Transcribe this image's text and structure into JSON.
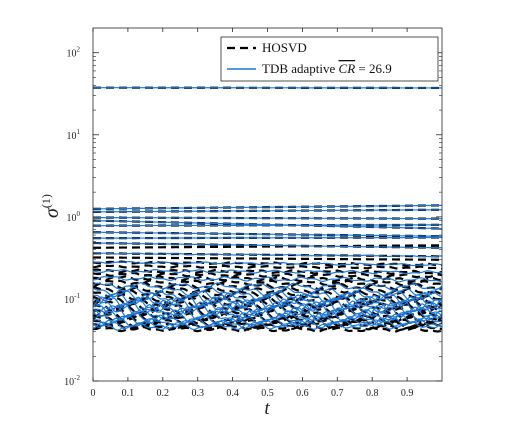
{
  "chart_data": {
    "type": "line",
    "xlabel": "t",
    "ylabel": "σ(1)",
    "ylabel_base": "σ",
    "ylabel_sup": "(1)",
    "xlim": [
      0,
      1
    ],
    "ylim": [
      0.01,
      200
    ],
    "yscale": "log",
    "grid": false,
    "legend_position": "top-right",
    "x_ticks": [
      0,
      0.1,
      0.2,
      0.3,
      0.4,
      0.5,
      0.6,
      0.7,
      0.8,
      0.9
    ],
    "x_tick_labels": [
      "0",
      "0.1",
      "0.2",
      "0.3",
      "0.4",
      "0.5",
      "0.6",
      "0.7",
      "0.8",
      "0.9"
    ],
    "y_ticks": [
      0.01,
      0.1,
      1,
      10,
      100
    ],
    "y_tick_bases": [
      "10",
      "10",
      "10",
      "10",
      "10"
    ],
    "y_tick_exponents": [
      "-2",
      "-1",
      "0",
      "1",
      "2"
    ],
    "legend": [
      {
        "name": "HOSVD",
        "style": "dashed",
        "color": "#000000"
      },
      {
        "name": "TDB adaptive",
        "cr_label": "CR",
        "cr_value": "= 26.9",
        "style": "solid",
        "color": "#1f77d4"
      }
    ],
    "series": [
      {
        "group": "HOSVD",
        "start": 37.5,
        "end": 37.2,
        "osc": 0
      },
      {
        "group": "HOSVD",
        "start": 1.25,
        "end": 1.38,
        "osc": 0
      },
      {
        "group": "HOSVD",
        "start": 1.15,
        "end": 1.22,
        "osc": 0
      },
      {
        "group": "HOSVD",
        "start": 0.98,
        "end": 0.95,
        "osc": 0
      },
      {
        "group": "HOSVD",
        "start": 0.9,
        "end": 0.72,
        "osc": 0
      },
      {
        "group": "HOSVD",
        "start": 0.78,
        "end": 0.8,
        "osc": 0
      },
      {
        "group": "HOSVD",
        "start": 0.65,
        "end": 0.58,
        "osc": 0
      },
      {
        "group": "HOSVD",
        "start": 0.55,
        "end": 0.56,
        "osc": 0
      },
      {
        "group": "HOSVD",
        "start": 0.48,
        "end": 0.42,
        "osc": 0
      },
      {
        "group": "HOSVD",
        "start": 0.42,
        "end": 0.45,
        "osc": 0
      },
      {
        "group": "HOSVD",
        "start": 0.36,
        "end": 0.33,
        "osc": 0
      },
      {
        "group": "HOSVD",
        "start": 0.32,
        "end": 0.3,
        "osc": 0
      },
      {
        "group": "HOSVD",
        "start": 0.28,
        "end": 0.26,
        "osc": 0.02
      },
      {
        "group": "HOSVD",
        "start": 0.25,
        "end": 0.24,
        "osc": 0.02
      },
      {
        "group": "HOSVD",
        "start": 0.22,
        "end": 0.21,
        "osc": 0.03
      },
      {
        "group": "HOSVD",
        "start": 0.2,
        "end": 0.19,
        "osc": 0.03
      },
      {
        "group": "HOSVD",
        "start": 0.18,
        "end": 0.17,
        "osc": 0.04
      },
      {
        "group": "HOSVD",
        "start": 0.16,
        "end": 0.155,
        "osc": 0.04
      },
      {
        "group": "HOSVD",
        "start": 0.145,
        "end": 0.14,
        "osc": 0.05
      },
      {
        "group": "HOSVD",
        "start": 0.13,
        "end": 0.125,
        "osc": 0.05
      },
      {
        "group": "HOSVD",
        "start": 0.118,
        "end": 0.112,
        "osc": 0.06
      },
      {
        "group": "HOSVD",
        "start": 0.106,
        "end": 0.1,
        "osc": 0.06
      },
      {
        "group": "HOSVD",
        "start": 0.096,
        "end": 0.092,
        "osc": 0.07
      },
      {
        "group": "HOSVD",
        "start": 0.088,
        "end": 0.084,
        "osc": 0.07
      },
      {
        "group": "HOSVD",
        "start": 0.08,
        "end": 0.077,
        "osc": 0.08
      },
      {
        "group": "HOSVD",
        "start": 0.073,
        "end": 0.07,
        "osc": 0.08
      },
      {
        "group": "HOSVD",
        "start": 0.067,
        "end": 0.064,
        "osc": 0.08
      },
      {
        "group": "HOSVD",
        "start": 0.062,
        "end": 0.059,
        "osc": 0.08
      },
      {
        "group": "HOSVD",
        "start": 0.057,
        "end": 0.055,
        "osc": 0.07
      },
      {
        "group": "HOSVD",
        "start": 0.053,
        "end": 0.051,
        "osc": 0.07
      },
      {
        "group": "HOSVD",
        "start": 0.049,
        "end": 0.048,
        "osc": 0.06
      },
      {
        "group": "HOSVD",
        "start": 0.046,
        "end": 0.045,
        "osc": 0.05
      },
      {
        "group": "HOSVD",
        "start": 0.043,
        "end": 0.042,
        "osc": 0.04
      },
      {
        "group": "TDB",
        "start": 37.5,
        "end": 37.2,
        "osc": 0
      },
      {
        "group": "TDB",
        "start": 1.25,
        "end": 1.38,
        "osc": 0
      },
      {
        "group": "TDB",
        "start": 1.15,
        "end": 1.22,
        "osc": 0
      },
      {
        "group": "TDB",
        "start": 0.98,
        "end": 0.95,
        "osc": 0
      },
      {
        "group": "TDB",
        "start": 0.9,
        "end": 0.72,
        "osc": 0
      },
      {
        "group": "TDB",
        "start": 0.78,
        "end": 0.8,
        "osc": 0
      },
      {
        "group": "TDB",
        "start": 0.65,
        "end": 0.58,
        "osc": 0
      },
      {
        "group": "TDB",
        "start": 0.55,
        "end": 0.56,
        "osc": 0
      },
      {
        "group": "TDB",
        "start": 0.48,
        "end": 0.42,
        "osc": 0
      },
      {
        "group": "TDB",
        "start": 0.36,
        "end": 0.33,
        "osc": 0.01
      },
      {
        "group": "TDB",
        "start": 0.28,
        "end": 0.26,
        "osc": 0.02
      },
      {
        "group": "TDB",
        "start": 0.22,
        "end": 0.21,
        "osc": 0.03
      },
      {
        "group": "TDB",
        "start": 0.18,
        "end": 0.17,
        "osc": 0.04
      },
      {
        "group": "TDB",
        "start": 0.145,
        "end": 0.14,
        "osc": 0.06
      },
      {
        "group": "TDB",
        "start": 0.125,
        "end": 0.12,
        "osc": 0.08
      },
      {
        "group": "TDB",
        "start": 0.11,
        "end": 0.108,
        "osc": 0.1
      },
      {
        "group": "TDB",
        "start": 0.1,
        "end": 0.1,
        "osc": 0.12
      },
      {
        "group": "TDB",
        "start": 0.092,
        "end": 0.094,
        "osc": 0.13
      },
      {
        "group": "TDB",
        "start": 0.085,
        "end": 0.088,
        "osc": 0.14
      },
      {
        "group": "TDB",
        "start": 0.08,
        "end": 0.082,
        "osc": 0.14
      },
      {
        "group": "TDB",
        "start": 0.075,
        "end": 0.077,
        "osc": 0.14
      },
      {
        "group": "TDB",
        "start": 0.07,
        "end": 0.072,
        "osc": 0.13
      },
      {
        "group": "TDB",
        "start": 0.065,
        "end": 0.067,
        "osc": 0.12
      },
      {
        "group": "TDB",
        "start": 0.06,
        "end": 0.062,
        "osc": 0.11
      },
      {
        "group": "TDB",
        "start": 0.055,
        "end": 0.058,
        "osc": 0.1
      },
      {
        "group": "TDB",
        "start": 0.051,
        "end": 0.054,
        "osc": 0.09
      },
      {
        "group": "TDB",
        "start": 0.048,
        "end": 0.051,
        "osc": 0.08
      },
      {
        "group": "TDB",
        "start": 0.046,
        "end": 0.048,
        "osc": 0.07
      }
    ]
  }
}
